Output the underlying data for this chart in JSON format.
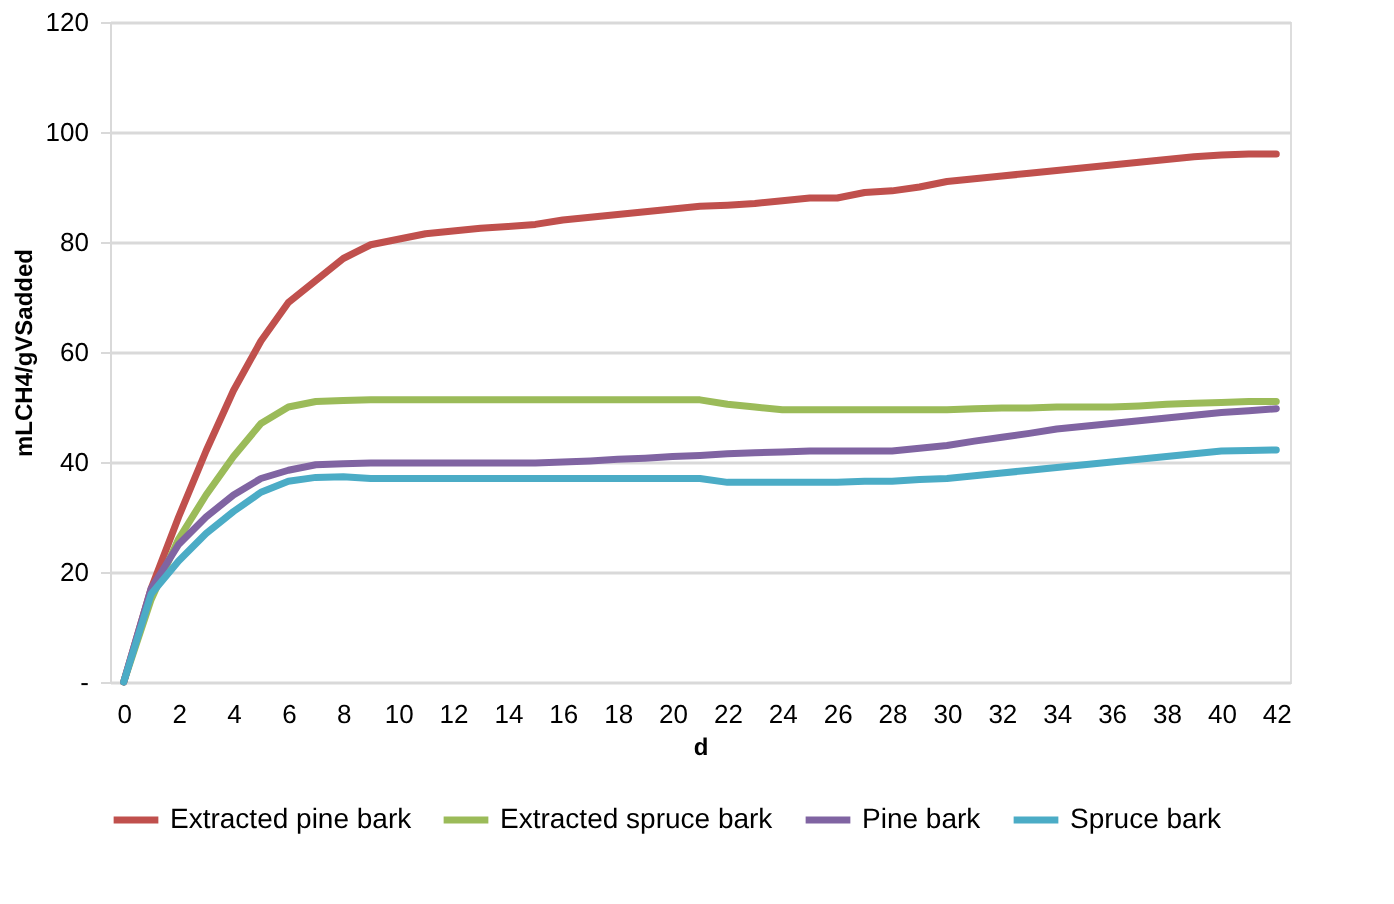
{
  "chart_data": {
    "type": "line",
    "xlabel": "d",
    "ylabel": "mLCH4/gVSadded",
    "x": [
      0,
      1,
      2,
      3,
      4,
      5,
      6,
      7,
      8,
      9,
      10,
      11,
      12,
      13,
      14,
      15,
      16,
      17,
      18,
      19,
      20,
      21,
      22,
      23,
      24,
      25,
      26,
      27,
      28,
      29,
      30,
      31,
      32,
      33,
      34,
      35,
      36,
      37,
      38,
      39,
      40,
      41,
      42
    ],
    "xlim": [
      -0.5,
      42.5
    ],
    "xticks": [
      0,
      2,
      4,
      6,
      8,
      10,
      12,
      14,
      16,
      18,
      20,
      22,
      24,
      26,
      28,
      30,
      32,
      34,
      36,
      38,
      40,
      42
    ],
    "ylim": [
      0,
      120
    ],
    "yticks": [
      {
        "value": 0,
        "label": "-"
      },
      20,
      40,
      60,
      80,
      100,
      120
    ],
    "grid": "y",
    "legend": "bottom",
    "marker": "none",
    "line_style": "solid",
    "series": [
      {
        "name": "Extracted pine bark",
        "color": "#c0504d",
        "values": [
          0,
          17,
          30,
          42,
          53,
          62,
          69,
          73,
          77,
          79.5,
          80.5,
          81.5,
          82,
          82.5,
          82.8,
          83.2,
          84,
          84.5,
          85,
          85.5,
          86,
          86.5,
          86.7,
          87,
          87.5,
          88,
          88,
          89,
          89.3,
          90,
          91,
          91.5,
          92,
          92.5,
          93,
          93.5,
          94,
          94.5,
          95,
          95.5,
          95.8,
          96,
          96
        ]
      },
      {
        "name": "Extracted spruce bark",
        "color": "#9bbb59",
        "values": [
          0,
          15,
          26,
          34,
          41,
          47,
          50,
          51,
          51.2,
          51.3,
          51.3,
          51.3,
          51.3,
          51.3,
          51.3,
          51.3,
          51.3,
          51.3,
          51.3,
          51.3,
          51.3,
          51.3,
          50.5,
          50,
          49.5,
          49.5,
          49.5,
          49.5,
          49.5,
          49.5,
          49.5,
          49.7,
          49.8,
          49.8,
          50,
          50,
          50,
          50.2,
          50.5,
          50.7,
          50.8,
          51,
          51
        ]
      },
      {
        "name": "Pine bark",
        "color": "#8064a2",
        "values": [
          0,
          17,
          25,
          30,
          34,
          37,
          38.5,
          39.5,
          39.7,
          39.8,
          39.8,
          39.8,
          39.8,
          39.8,
          39.8,
          39.8,
          40,
          40.2,
          40.5,
          40.7,
          41,
          41.2,
          41.5,
          41.7,
          41.8,
          42,
          42,
          42,
          42,
          42.5,
          43,
          43.8,
          44.5,
          45.2,
          46,
          46.5,
          47,
          47.5,
          48,
          48.5,
          49,
          49.3,
          49.7
        ]
      },
      {
        "name": "Spruce bark",
        "color": "#4bacc6",
        "values": [
          0,
          16,
          22,
          27,
          31,
          34.5,
          36.5,
          37.2,
          37.3,
          37,
          37,
          37,
          37,
          37,
          37,
          37,
          37,
          37,
          37,
          37,
          37,
          37,
          36.3,
          36.3,
          36.3,
          36.3,
          36.3,
          36.5,
          36.5,
          36.8,
          37,
          37.5,
          38,
          38.5,
          39,
          39.5,
          40,
          40.5,
          41,
          41.5,
          42,
          42.1,
          42.2
        ]
      }
    ]
  }
}
